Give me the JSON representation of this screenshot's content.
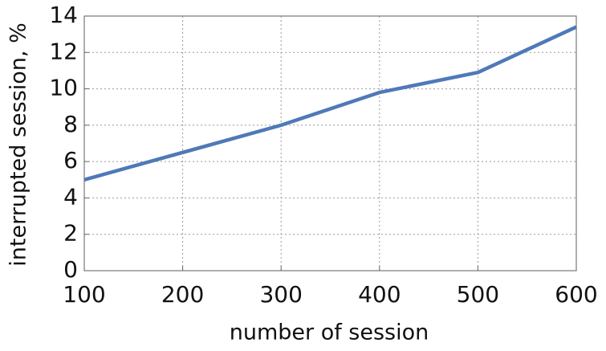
{
  "chart_data": {
    "type": "line",
    "xlabel": "number of session",
    "ylabel": "interrupted session, %",
    "x": [
      100,
      200,
      300,
      400,
      500,
      600
    ],
    "series": [
      {
        "name": "interrupted session",
        "color": "#4f79b8",
        "values": [
          5.0,
          6.5,
          8.0,
          9.8,
          10.9,
          13.4
        ]
      }
    ],
    "xlim": [
      100,
      600
    ],
    "xticks": [
      100,
      200,
      300,
      400,
      500,
      600
    ],
    "ylim": [
      0,
      14
    ],
    "yticks": [
      0,
      2,
      4,
      6,
      8,
      10,
      12,
      14
    ],
    "grid": true
  }
}
